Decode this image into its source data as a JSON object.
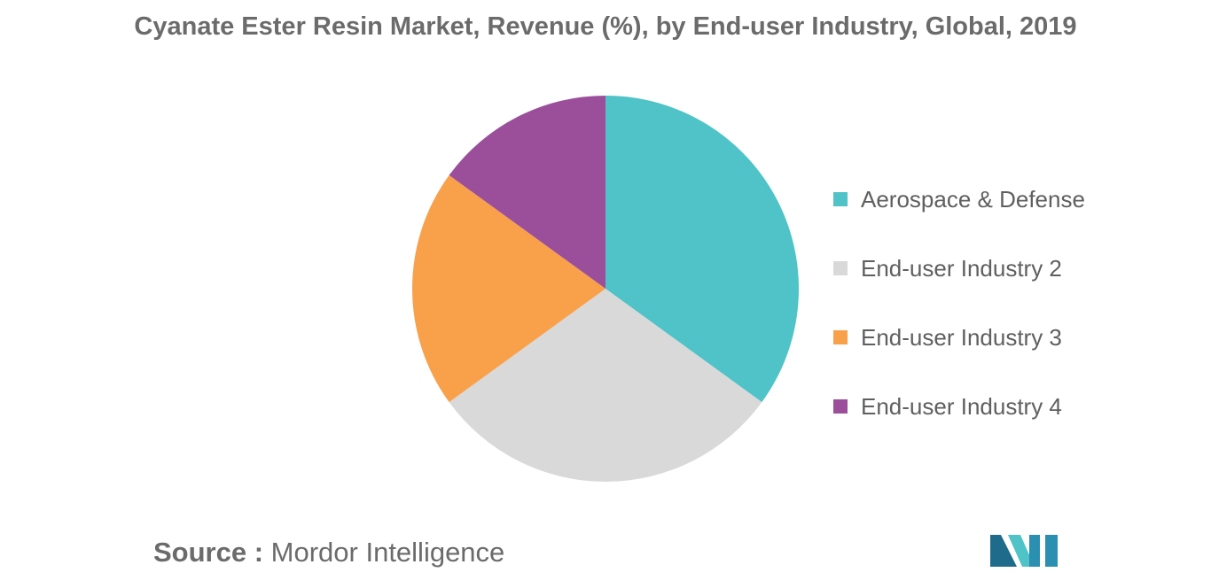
{
  "chart_data": {
    "type": "pie",
    "title": "Cyanate Ester Resin Market, Revenue (%), by End-user Industry, Global, 2019",
    "legend_position": "right",
    "slices": [
      {
        "label": "Aerospace & Defense",
        "value": 35,
        "color": "#4fc3c7"
      },
      {
        "label": "End-user Industry 2",
        "value": 30,
        "color": "#d9d9d9"
      },
      {
        "label": "End-user Industry 3",
        "value": 20,
        "color": "#f9a04a"
      },
      {
        "label": "End-user Industry 4",
        "value": 15,
        "color": "#9b4f9b"
      }
    ]
  },
  "source": {
    "key": "Source :",
    "value": "Mordor Intelligence"
  },
  "logo": {
    "colors": [
      "#1f6b8c",
      "#4fc3c7",
      "#2a8fb0"
    ]
  }
}
